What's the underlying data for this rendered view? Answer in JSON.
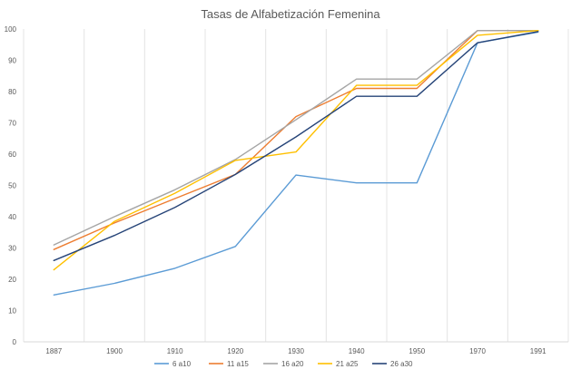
{
  "chart_data": {
    "type": "line",
    "title": "Tasas de Alfabetización Femenina",
    "xlabel": "",
    "ylabel": "",
    "ylim": [
      0,
      100
    ],
    "yticks": [
      0,
      10,
      20,
      30,
      40,
      50,
      60,
      70,
      80,
      90,
      100
    ],
    "grid": "vertical",
    "legend_position": "bottom",
    "categories": [
      "1887",
      "1900",
      "1910",
      "1920",
      "1930",
      "1940",
      "1950",
      "1970",
      "1991"
    ],
    "series": [
      {
        "name": "6 a10",
        "color": "#5b9bd5",
        "values": [
          15,
          18.7,
          23.5,
          30.5,
          53.3,
          50.8,
          50.8,
          95.6,
          99
        ]
      },
      {
        "name": "11 a15",
        "color": "#ed7d31",
        "values": [
          29.5,
          38,
          45.8,
          53.5,
          72,
          81,
          81,
          99.5,
          99.5
        ]
      },
      {
        "name": "16 a20",
        "color": "#a5a5a5",
        "values": [
          31,
          40,
          48.6,
          58.3,
          71,
          84,
          84,
          99.5,
          99.5
        ]
      },
      {
        "name": "21 a25",
        "color": "#ffc000",
        "values": [
          23,
          38.5,
          47.5,
          58,
          60.7,
          82,
          82,
          98,
          99.5
        ]
      },
      {
        "name": "26 a30",
        "color": "#264478",
        "values": [
          26,
          34,
          43,
          53.5,
          65.5,
          78.5,
          78.5,
          95.6,
          99.2
        ]
      }
    ]
  }
}
